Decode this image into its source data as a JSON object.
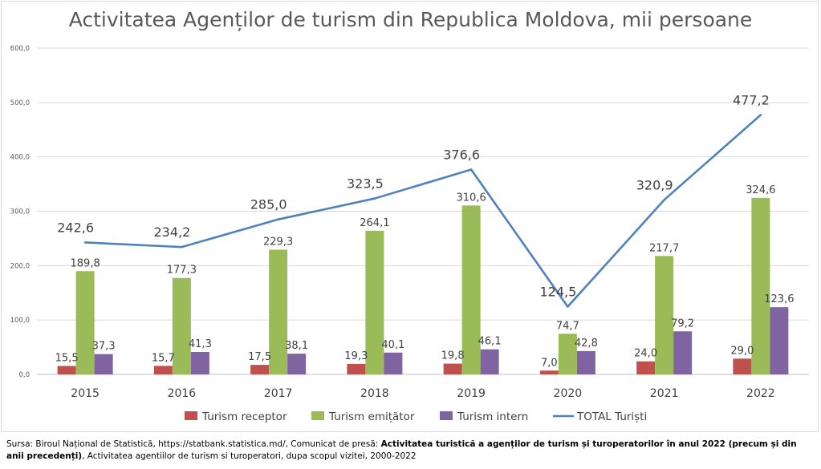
{
  "chart_data": {
    "type": "bar",
    "title": "Activitatea Agenților de turism din Republica Moldova, mii persoane",
    "categories": [
      "2015",
      "2016",
      "2017",
      "2018",
      "2019",
      "2020",
      "2021",
      "2022"
    ],
    "ylim": [
      0,
      600
    ],
    "yticks": [
      "0,0",
      "100,0",
      "200,0",
      "300,0",
      "400,0",
      "500,0",
      "600,0"
    ],
    "grid": true,
    "legend_position": "bottom",
    "series": [
      {
        "name": "Turism receptor",
        "kind": "bar",
        "color": "#c0504d",
        "values": [
          15.5,
          15.7,
          17.5,
          19.3,
          19.8,
          7.0,
          24.0,
          29.0
        ],
        "labels": [
          "15,5",
          "15,7",
          "17,5",
          "19,3",
          "19,8",
          "7,0",
          "24,0",
          "29,0"
        ]
      },
      {
        "name": "Turism emițător",
        "kind": "bar",
        "color": "#9bbb59",
        "values": [
          189.8,
          177.3,
          229.3,
          264.1,
          310.6,
          74.7,
          217.7,
          324.6
        ],
        "labels": [
          "189,8",
          "177,3",
          "229,3",
          "264,1",
          "310,6",
          "74,7",
          "217,7",
          "324,6"
        ]
      },
      {
        "name": "Turism intern",
        "kind": "bar",
        "color": "#8064a2",
        "values": [
          37.3,
          41.3,
          38.1,
          40.1,
          46.1,
          42.8,
          79.2,
          123.6
        ],
        "labels": [
          "37,3",
          "41,3",
          "38,1",
          "40,1",
          "46,1",
          "42,8",
          "79,2",
          "123,6"
        ]
      },
      {
        "name": "TOTAL Turiști",
        "kind": "line",
        "color": "#4f81bd",
        "values": [
          242.6,
          234.2,
          285.0,
          323.5,
          376.6,
          124.5,
          320.9,
          477.2
        ],
        "labels": [
          "242,6",
          "234,2",
          "285,0",
          "323,5",
          "376,6",
          "124,5",
          "320,9",
          "477,2"
        ]
      }
    ]
  },
  "source": {
    "prefix": "Sursa: Biroul Național de Statistică, https://statbank.statistica.md/, Comunicat de presă: ",
    "bold": "Activitatea turistică a agenților de turism și turoperatorilor în anul 2022 (precum și din anii precedenți)",
    "suffix": ", Activitatea agentiilor de turism si turoperatori, dupa scopul vizitei, 2000-2022"
  }
}
